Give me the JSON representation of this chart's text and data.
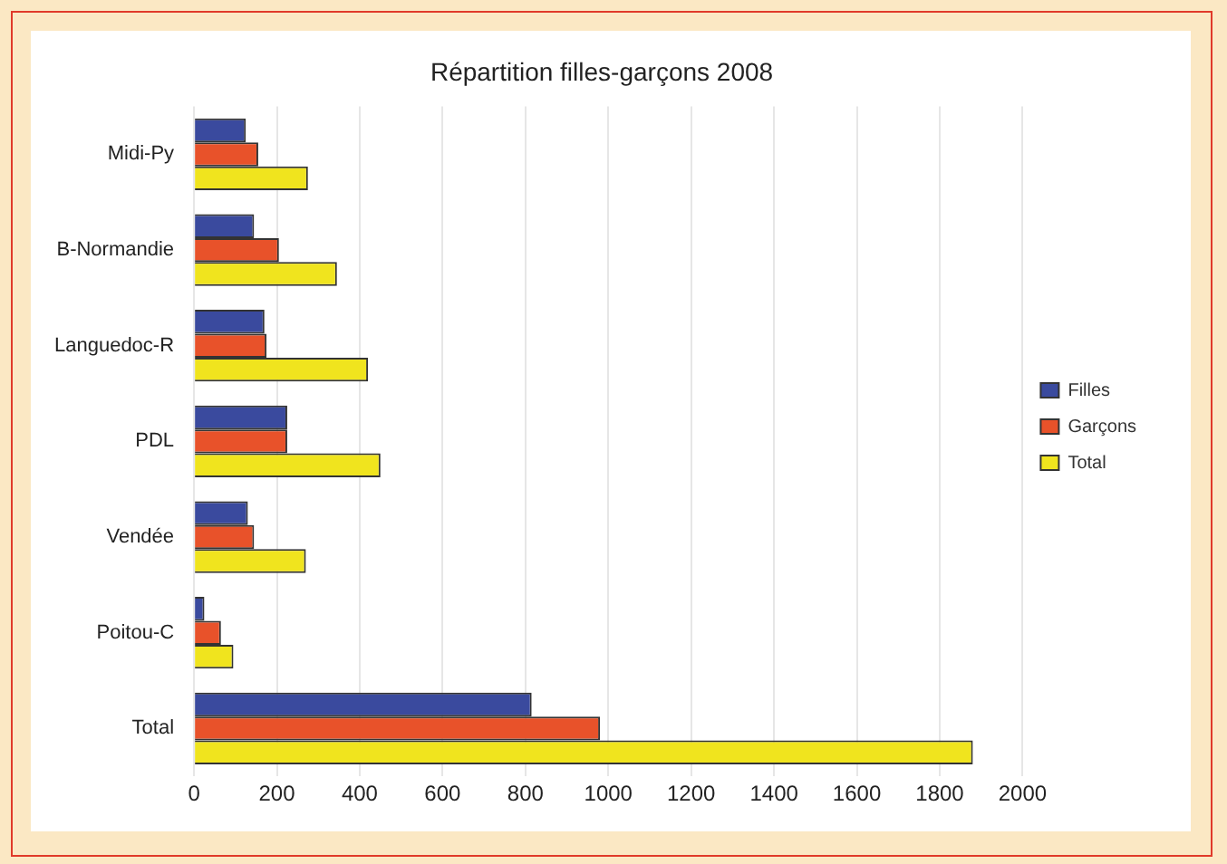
{
  "chart_data": {
    "type": "bar",
    "orientation": "horizontal",
    "title": "Répartition filles-garçons 2008",
    "categories": [
      "Midi-Py",
      "B-Normandie",
      "Languedoc-R",
      "PDL",
      "Vendée",
      "Poitou-C",
      "Total"
    ],
    "series": [
      {
        "name": "Filles",
        "color": "#3a4a9e",
        "values": [
          125,
          145,
          170,
          225,
          130,
          25,
          815
        ]
      },
      {
        "name": "Garçons",
        "color": "#e8522a",
        "values": [
          155,
          205,
          175,
          225,
          145,
          65,
          980
        ]
      },
      {
        "name": "Total",
        "color": "#f0e41e",
        "values": [
          275,
          345,
          420,
          450,
          270,
          95,
          1880
        ]
      }
    ],
    "xlim": [
      0,
      2000
    ],
    "xticks": [
      0,
      200,
      400,
      600,
      800,
      1000,
      1200,
      1400,
      1600,
      1800,
      2000
    ],
    "grid": "x",
    "legend": "right"
  }
}
